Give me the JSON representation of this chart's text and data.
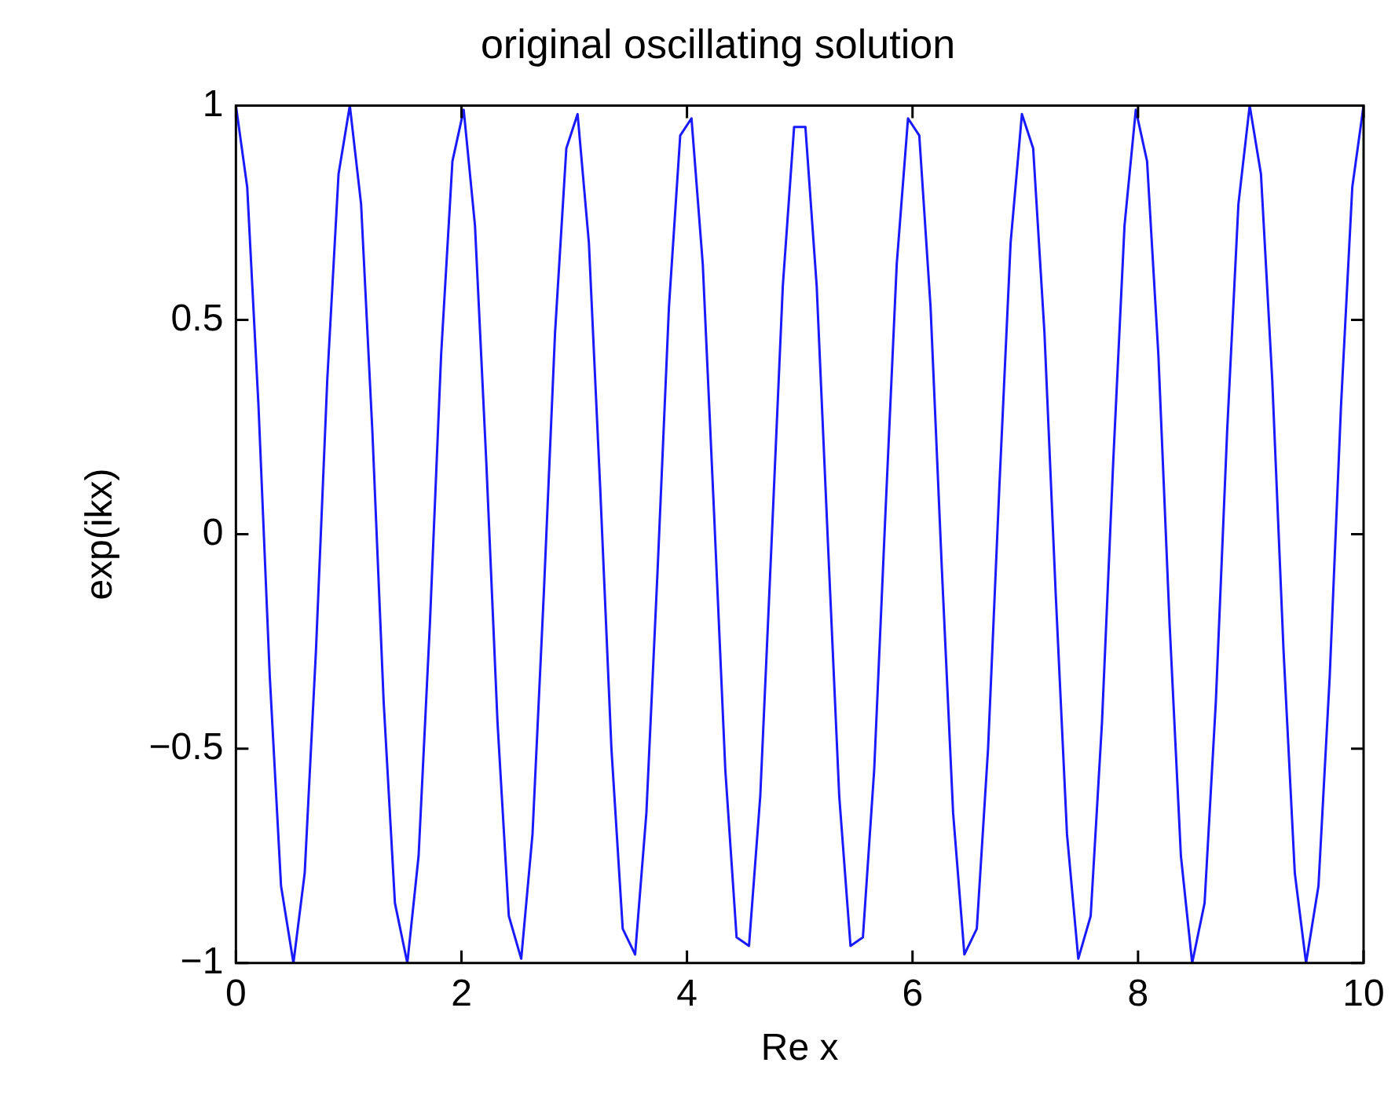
{
  "chart_data": {
    "type": "line",
    "title": "original oscillating solution",
    "xlabel": "Re x",
    "ylabel": "exp(ikx)",
    "marker": "none",
    "line_style": "solid",
    "grid": false,
    "legend": false,
    "xlim": [
      0,
      10
    ],
    "xticks": [
      0,
      2,
      4,
      6,
      8,
      10
    ],
    "ylim": [
      -1,
      1
    ],
    "yticks": [
      {
        "value": -1,
        "label": "−1"
      },
      {
        "value": -0.5,
        "label": "−0.5"
      },
      0,
      0.5,
      1
    ],
    "series": [
      {
        "color": "#1a1aff",
        "x": [
          0,
          0.1,
          0.2,
          0.3,
          0.4,
          0.51,
          0.61,
          0.71,
          0.81,
          0.91,
          1.01,
          1.11,
          1.21,
          1.31,
          1.41,
          1.52,
          1.62,
          1.72,
          1.82,
          1.92,
          2.02,
          2.12,
          2.22,
          2.32,
          2.42,
          2.53,
          2.63,
          2.73,
          2.83,
          2.93,
          3.03,
          3.13,
          3.23,
          3.33,
          3.43,
          3.54,
          3.64,
          3.74,
          3.84,
          3.94,
          4.04,
          4.14,
          4.24,
          4.34,
          4.44,
          4.55,
          4.65,
          4.75,
          4.85,
          4.95,
          5.05,
          5.15,
          5.25,
          5.35,
          5.45,
          5.56,
          5.66,
          5.76,
          5.86,
          5.96,
          6.06,
          6.16,
          6.26,
          6.36,
          6.46,
          6.57,
          6.67,
          6.77,
          6.87,
          6.97,
          7.07,
          7.17,
          7.27,
          7.37,
          7.47,
          7.58,
          7.68,
          7.78,
          7.88,
          7.98,
          8.08,
          8.18,
          8.28,
          8.38,
          8.48,
          8.59,
          8.69,
          8.79,
          8.89,
          8.99,
          9.09,
          9.19,
          9.29,
          9.39,
          9.49,
          9.6,
          9.7,
          9.8,
          9.9,
          10
        ],
        "values": [
          1,
          0.81,
          0.3,
          -0.33,
          -0.82,
          -1,
          -0.79,
          -0.27,
          0.36,
          0.84,
          1,
          0.77,
          0.24,
          -0.39,
          -0.86,
          -1,
          -0.75,
          -0.21,
          0.42,
          0.87,
          0.99,
          0.72,
          0.17,
          -0.44,
          -0.89,
          -0.99,
          -0.7,
          -0.14,
          0.47,
          0.9,
          0.98,
          0.68,
          0.11,
          -0.5,
          -0.92,
          -0.98,
          -0.65,
          -0.08,
          0.53,
          0.93,
          0.97,
          0.63,
          0.05,
          -0.55,
          -0.94,
          -0.96,
          -0.61,
          -0.02,
          0.58,
          0.95,
          0.95,
          0.58,
          -0.02,
          -0.61,
          -0.96,
          -0.94,
          -0.55,
          0.05,
          0.63,
          0.97,
          0.93,
          0.53,
          -0.08,
          -0.65,
          -0.98,
          -0.92,
          -0.5,
          0.11,
          0.68,
          0.98,
          0.9,
          0.47,
          -0.14,
          -0.7,
          -0.99,
          -0.89,
          -0.44,
          0.17,
          0.72,
          0.99,
          0.87,
          0.42,
          -0.21,
          -0.75,
          -1,
          -0.86,
          -0.39,
          0.24,
          0.77,
          1,
          0.84,
          0.36,
          -0.27,
          -0.79,
          -1,
          -0.82,
          -0.33,
          0.3,
          0.81,
          1
        ]
      }
    ]
  }
}
